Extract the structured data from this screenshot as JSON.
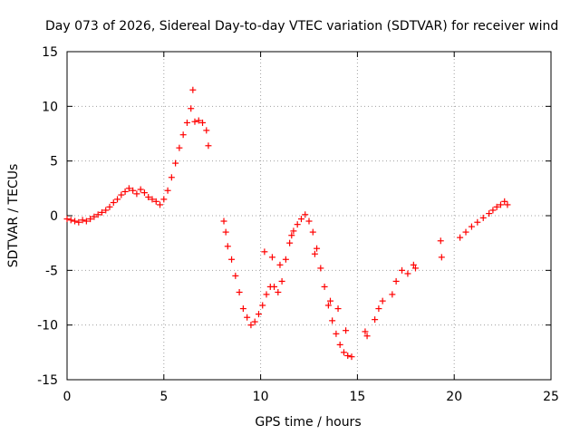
{
  "chart_data": {
    "type": "scatter",
    "title": "Day 073 of 2026, Sidereal Day-to-day VTEC variation (SDTVAR) for receiver wind",
    "xlabel": "GPS time / hours",
    "ylabel": "SDTVAR / TECUs",
    "xlim": [
      0,
      25
    ],
    "ylim": [
      -15,
      15
    ],
    "xticks": [
      0,
      5,
      10,
      15,
      20,
      25
    ],
    "yticks": [
      -15,
      -10,
      -5,
      0,
      5,
      10,
      15
    ],
    "grid": true,
    "marker": "plus",
    "marker_color": "#ff0000",
    "series_color": "#ff0000",
    "series": [
      {
        "points": [
          [
            0.0,
            -0.3
          ],
          [
            0.2,
            -0.4
          ],
          [
            0.4,
            -0.5
          ],
          [
            0.6,
            -0.6
          ],
          [
            0.8,
            -0.4
          ],
          [
            1.0,
            -0.5
          ],
          [
            1.2,
            -0.3
          ],
          [
            1.4,
            -0.1
          ],
          [
            1.6,
            0.1
          ],
          [
            1.8,
            0.3
          ],
          [
            2.0,
            0.5
          ],
          [
            2.2,
            0.8
          ],
          [
            2.4,
            1.2
          ],
          [
            2.6,
            1.5
          ],
          [
            2.8,
            1.9
          ],
          [
            3.0,
            2.2
          ],
          [
            3.2,
            2.5
          ],
          [
            3.4,
            2.3
          ],
          [
            3.6,
            2.0
          ],
          [
            3.8,
            2.4
          ],
          [
            4.0,
            2.1
          ],
          [
            4.2,
            1.7
          ],
          [
            4.4,
            1.5
          ],
          [
            4.6,
            1.3
          ],
          [
            4.8,
            1.0
          ],
          [
            5.0,
            1.5
          ],
          [
            5.2,
            2.3
          ],
          [
            5.4,
            3.5
          ],
          [
            5.6,
            4.8
          ],
          [
            5.8,
            6.2
          ],
          [
            6.0,
            7.4
          ],
          [
            6.2,
            8.5
          ],
          [
            6.4,
            9.8
          ],
          [
            6.5,
            11.5
          ],
          [
            6.6,
            8.6
          ],
          [
            6.8,
            8.7
          ],
          [
            7.0,
            8.5
          ],
          [
            7.2,
            7.8
          ],
          [
            7.3,
            6.4
          ],
          [
            8.1,
            -0.5
          ],
          [
            8.2,
            -1.5
          ],
          [
            8.3,
            -2.8
          ],
          [
            8.5,
            -4.0
          ],
          [
            8.7,
            -5.5
          ],
          [
            8.9,
            -7.0
          ],
          [
            9.1,
            -8.5
          ],
          [
            9.3,
            -9.3
          ],
          [
            9.5,
            -10.0
          ],
          [
            9.7,
            -9.7
          ],
          [
            9.9,
            -9.0
          ],
          [
            10.1,
            -8.2
          ],
          [
            10.3,
            -7.2
          ],
          [
            10.5,
            -6.5
          ],
          [
            10.7,
            -6.5
          ],
          [
            10.9,
            -7.0
          ],
          [
            11.1,
            -6.0
          ],
          [
            11.3,
            -4.0
          ],
          [
            11.5,
            -2.5
          ],
          [
            11.7,
            -1.4
          ],
          [
            11.9,
            -0.8
          ],
          [
            12.1,
            -0.3
          ],
          [
            12.3,
            0.1
          ],
          [
            12.5,
            -0.5
          ],
          [
            12.7,
            -1.5
          ],
          [
            12.9,
            -3.0
          ],
          [
            13.1,
            -4.8
          ],
          [
            13.3,
            -6.5
          ],
          [
            13.5,
            -8.2
          ],
          [
            13.7,
            -9.6
          ],
          [
            13.9,
            -10.8
          ],
          [
            14.1,
            -11.8
          ],
          [
            14.3,
            -12.5
          ],
          [
            14.5,
            -12.8
          ],
          [
            14.7,
            -12.9
          ],
          [
            10.2,
            -3.3
          ],
          [
            10.6,
            -3.8
          ],
          [
            11.0,
            -4.5
          ],
          [
            11.6,
            -1.8
          ],
          [
            12.8,
            -3.5
          ],
          [
            13.6,
            -7.8
          ],
          [
            14.0,
            -8.5
          ],
          [
            14.4,
            -10.5
          ],
          [
            15.4,
            -10.6
          ],
          [
            15.5,
            -11.0
          ],
          [
            15.9,
            -9.5
          ],
          [
            16.1,
            -8.5
          ],
          [
            16.3,
            -7.8
          ],
          [
            16.8,
            -7.2
          ],
          [
            17.0,
            -6.0
          ],
          [
            17.3,
            -5.0
          ],
          [
            17.6,
            -5.3
          ],
          [
            17.9,
            -4.5
          ],
          [
            18.0,
            -4.8
          ],
          [
            19.3,
            -2.3
          ],
          [
            19.35,
            -3.8
          ],
          [
            20.3,
            -2.0
          ],
          [
            20.6,
            -1.5
          ],
          [
            20.9,
            -1.0
          ],
          [
            21.2,
            -0.6
          ],
          [
            21.5,
            -0.2
          ],
          [
            21.8,
            0.2
          ],
          [
            22.0,
            0.5
          ],
          [
            22.2,
            0.8
          ],
          [
            22.4,
            1.0
          ],
          [
            22.6,
            1.3
          ],
          [
            22.75,
            1.0
          ]
        ]
      }
    ]
  }
}
